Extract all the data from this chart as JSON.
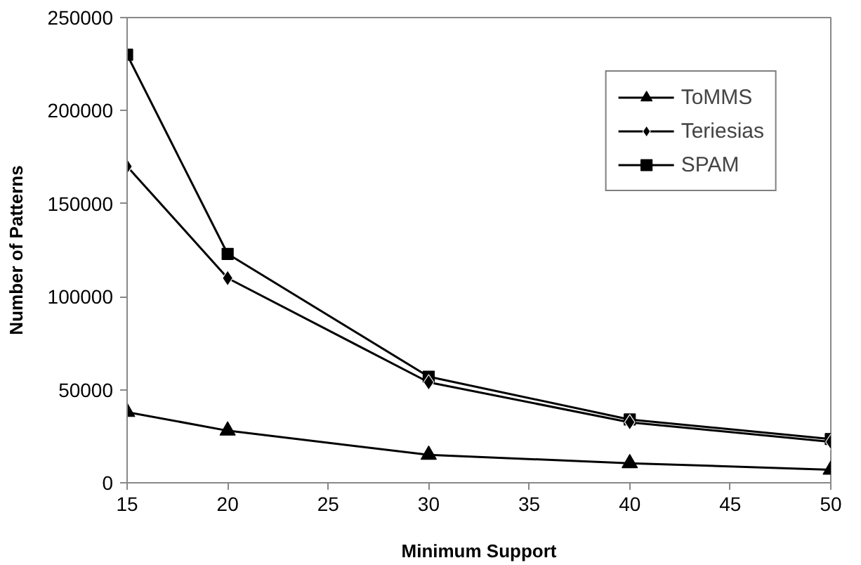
{
  "chart_data": {
    "type": "line",
    "xlabel": "Minimum Support",
    "ylabel": "Number of Patterns",
    "x": [
      15,
      20,
      30,
      40,
      50
    ],
    "xlim": [
      15,
      50
    ],
    "xticks": [
      15,
      20,
      25,
      30,
      35,
      40,
      45,
      50
    ],
    "ylim": [
      0,
      250000
    ],
    "yticks": [
      0,
      50000,
      100000,
      150000,
      200000,
      250000
    ],
    "grid": false,
    "legend": "top right",
    "line_style": "solid",
    "series": [
      {
        "name": "ToMMS",
        "color": "#000000",
        "marker": "triangle",
        "values": [
          38000,
          28000,
          15000,
          10500,
          7000
        ]
      },
      {
        "name": "Teriesias",
        "color": "#000000",
        "marker": "diamond",
        "values": [
          170000,
          110000,
          54000,
          32500,
          22000
        ]
      },
      {
        "name": "SPAM",
        "color": "#000000",
        "marker": "square",
        "values": [
          230000,
          123000,
          57000,
          34000,
          23500
        ]
      }
    ]
  }
}
